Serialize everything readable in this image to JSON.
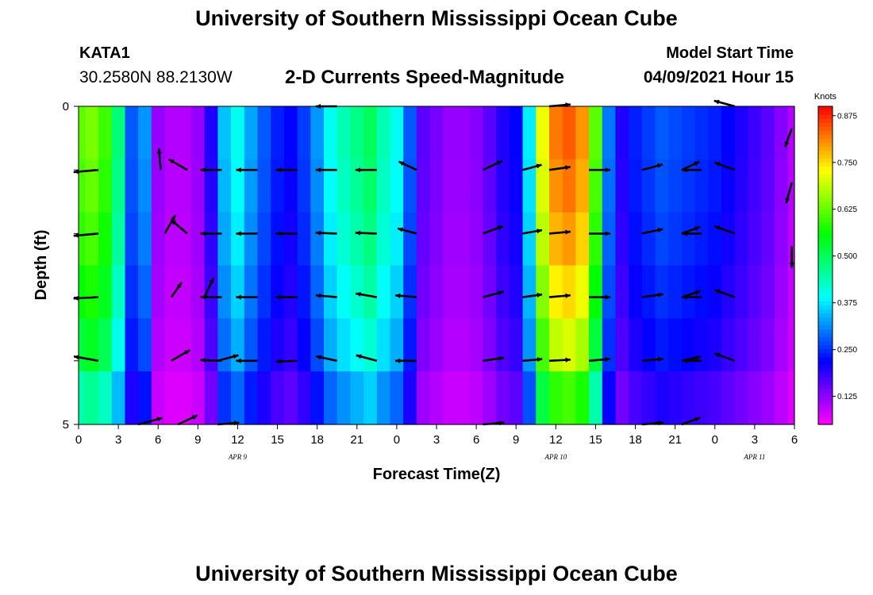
{
  "header": {
    "title": "University of Southern Mississippi Ocean Cube",
    "station_id": "KATA1",
    "station_coords": "30.2580N  88.2130W",
    "chart_title": "2-D Currents Speed-Magnitude",
    "model_start_label": "Model Start Time",
    "model_start_value": "04/09/2021 Hour 15"
  },
  "footer": {
    "title": "University of Southern Mississippi Ocean Cube"
  },
  "chart_data": {
    "type": "heatmap",
    "title": "2-D Currents Speed-Magnitude",
    "xlabel": "Forecast Time(Z)",
    "ylabel": "Depth (ft)",
    "x_unit": "forecast hour",
    "xlim": [
      0,
      54
    ],
    "ylim": [
      0,
      5
    ],
    "y_tick_labels": [
      {
        "depth": 0,
        "label": "0"
      },
      {
        "depth": 1,
        "label": ""
      },
      {
        "depth": 2,
        "label": ""
      },
      {
        "depth": 3,
        "label": ""
      },
      {
        "depth": 4,
        "label": ""
      },
      {
        "depth": 5,
        "label": "5"
      }
    ],
    "x_tick_labels": [
      {
        "hour": 0,
        "label": "0"
      },
      {
        "hour": 3,
        "label": "3"
      },
      {
        "hour": 6,
        "label": "6"
      },
      {
        "hour": 9,
        "label": "9"
      },
      {
        "hour": 12,
        "label": "12"
      },
      {
        "hour": 15,
        "label": "15"
      },
      {
        "hour": 18,
        "label": "18"
      },
      {
        "hour": 21,
        "label": "21"
      },
      {
        "hour": 24,
        "label": "0"
      },
      {
        "hour": 27,
        "label": "3"
      },
      {
        "hour": 30,
        "label": "6"
      },
      {
        "hour": 33,
        "label": "9"
      },
      {
        "hour": 36,
        "label": "12"
      },
      {
        "hour": 39,
        "label": "15"
      },
      {
        "hour": 42,
        "label": "18"
      },
      {
        "hour": 45,
        "label": "21"
      },
      {
        "hour": 48,
        "label": "0"
      },
      {
        "hour": 51,
        "label": "3"
      },
      {
        "hour": 54,
        "label": "6"
      }
    ],
    "date_labels": [
      {
        "hour": 12,
        "label": "APR  9"
      },
      {
        "hour": 36,
        "label": "APR  10"
      },
      {
        "hour": 51,
        "label": "APR  11"
      }
    ],
    "colorbar": {
      "unit": "Knots",
      "range": [
        0.05,
        0.9
      ],
      "ticks": [
        "0.125",
        "0.250",
        "0.375",
        "0.500",
        "0.625",
        "0.750",
        "0.875"
      ],
      "tick_values": [
        0.125,
        0.25,
        0.375,
        0.5,
        0.625,
        0.75,
        0.875
      ]
    },
    "speed_profile": {
      "hours": [
        0,
        1,
        2,
        3,
        4,
        5,
        6,
        7,
        8,
        9,
        10,
        11,
        12,
        13,
        14,
        15,
        16,
        17,
        18,
        19,
        20,
        21,
        22,
        23,
        24,
        25,
        26,
        27,
        28,
        29,
        30,
        31,
        32,
        33,
        34,
        35,
        36,
        37,
        38,
        39,
        40,
        41,
        42,
        43,
        44,
        45,
        46,
        47,
        48,
        49,
        50,
        51,
        52,
        53,
        54
      ],
      "speed_knots": [
        0.62,
        0.64,
        0.6,
        0.48,
        0.28,
        0.32,
        0.12,
        0.1,
        0.1,
        0.12,
        0.2,
        0.35,
        0.4,
        0.33,
        0.28,
        0.24,
        0.22,
        0.26,
        0.32,
        0.4,
        0.44,
        0.47,
        0.5,
        0.44,
        0.4,
        0.28,
        0.16,
        0.14,
        0.12,
        0.12,
        0.13,
        0.16,
        0.2,
        0.22,
        0.38,
        0.72,
        0.82,
        0.84,
        0.8,
        0.62,
        0.3,
        0.2,
        0.24,
        0.26,
        0.28,
        0.27,
        0.26,
        0.25,
        0.24,
        0.22,
        0.2,
        0.18,
        0.16,
        0.13,
        0.1
      ]
    },
    "depth_factor": [
      1.0,
      0.98,
      0.95,
      0.9,
      0.84,
      0.72
    ],
    "vectors": [
      {
        "hour": 1.5,
        "depth": 1,
        "dir_deg": 185,
        "len": 0.7
      },
      {
        "hour": 1.5,
        "depth": 2,
        "dir_deg": 185,
        "len": 0.7
      },
      {
        "hour": 1.5,
        "depth": 3,
        "dir_deg": 183,
        "len": 0.7
      },
      {
        "hour": 1.5,
        "depth": 4,
        "dir_deg": 170,
        "len": 0.7
      },
      {
        "hour": 4.5,
        "depth": 5,
        "dir_deg": 15,
        "len": 0.7
      },
      {
        "hour": 6.2,
        "depth": 1,
        "dir_deg": 95,
        "len": 0.6
      },
      {
        "hour": 6.5,
        "depth": 2,
        "dir_deg": 60,
        "len": 0.6
      },
      {
        "hour": 7.0,
        "depth": 3,
        "dir_deg": 55,
        "len": 0.5
      },
      {
        "hour": 7.0,
        "depth": 4,
        "dir_deg": 30,
        "len": 0.6
      },
      {
        "hour": 7.5,
        "depth": 5,
        "dir_deg": 25,
        "len": 0.6
      },
      {
        "hour": 8.2,
        "depth": 1,
        "dir_deg": 150,
        "len": 0.6
      },
      {
        "hour": 8.2,
        "depth": 2,
        "dir_deg": 140,
        "len": 0.6
      },
      {
        "hour": 9.5,
        "depth": 3,
        "dir_deg": 65,
        "len": 0.6
      },
      {
        "hour": 10.5,
        "depth": 4,
        "dir_deg": 15,
        "len": 0.6
      },
      {
        "hour": 10.5,
        "depth": 5,
        "dir_deg": 5,
        "len": 0.6
      },
      {
        "hour": 10.8,
        "depth": 1,
        "dir_deg": 180,
        "len": 0.6
      },
      {
        "hour": 10.8,
        "depth": 2,
        "dir_deg": 180,
        "len": 0.6
      },
      {
        "hour": 10.8,
        "depth": 3,
        "dir_deg": 180,
        "len": 0.6
      },
      {
        "hour": 10.8,
        "depth": 4,
        "dir_deg": 178,
        "len": 0.6
      },
      {
        "hour": 13.5,
        "depth": 1,
        "dir_deg": 180,
        "len": 0.6
      },
      {
        "hour": 13.5,
        "depth": 2,
        "dir_deg": 180,
        "len": 0.6
      },
      {
        "hour": 13.5,
        "depth": 3,
        "dir_deg": 180,
        "len": 0.6
      },
      {
        "hour": 13.5,
        "depth": 4,
        "dir_deg": 180,
        "len": 0.6
      },
      {
        "hour": 16.5,
        "depth": 1,
        "dir_deg": 180,
        "len": 0.6
      },
      {
        "hour": 16.5,
        "depth": 2,
        "dir_deg": 180,
        "len": 0.6
      },
      {
        "hour": 16.5,
        "depth": 3,
        "dir_deg": 180,
        "len": 0.6
      },
      {
        "hour": 16.5,
        "depth": 4,
        "dir_deg": 182,
        "len": 0.6
      },
      {
        "hour": 19.5,
        "depth": 0,
        "dir_deg": 180,
        "len": 0.6
      },
      {
        "hour": 19.5,
        "depth": 1,
        "dir_deg": 180,
        "len": 0.6
      },
      {
        "hour": 19.5,
        "depth": 2,
        "dir_deg": 178,
        "len": 0.6
      },
      {
        "hour": 19.5,
        "depth": 3,
        "dir_deg": 175,
        "len": 0.6
      },
      {
        "hour": 19.5,
        "depth": 4,
        "dir_deg": 168,
        "len": 0.6
      },
      {
        "hour": 22.5,
        "depth": 1,
        "dir_deg": 180,
        "len": 0.6
      },
      {
        "hour": 22.5,
        "depth": 2,
        "dir_deg": 178,
        "len": 0.6
      },
      {
        "hour": 22.5,
        "depth": 3,
        "dir_deg": 170,
        "len": 0.6
      },
      {
        "hour": 22.5,
        "depth": 4,
        "dir_deg": 165,
        "len": 0.6
      },
      {
        "hour": 25.5,
        "depth": 1,
        "dir_deg": 155,
        "len": 0.55
      },
      {
        "hour": 25.5,
        "depth": 2,
        "dir_deg": 165,
        "len": 0.55
      },
      {
        "hour": 25.5,
        "depth": 3,
        "dir_deg": 175,
        "len": 0.6
      },
      {
        "hour": 25.5,
        "depth": 4,
        "dir_deg": 180,
        "len": 0.6
      },
      {
        "hour": 30.5,
        "depth": 1,
        "dir_deg": 25,
        "len": 0.6
      },
      {
        "hour": 30.5,
        "depth": 2,
        "dir_deg": 20,
        "len": 0.6
      },
      {
        "hour": 30.5,
        "depth": 3,
        "dir_deg": 15,
        "len": 0.6
      },
      {
        "hour": 30.5,
        "depth": 4,
        "dir_deg": 8,
        "len": 0.6
      },
      {
        "hour": 30.5,
        "depth": 5,
        "dir_deg": 5,
        "len": 0.6
      },
      {
        "hour": 33.5,
        "depth": 1,
        "dir_deg": 15,
        "len": 0.55
      },
      {
        "hour": 33.5,
        "depth": 2,
        "dir_deg": 10,
        "len": 0.55
      },
      {
        "hour": 33.5,
        "depth": 3,
        "dir_deg": 8,
        "len": 0.55
      },
      {
        "hour": 33.5,
        "depth": 4,
        "dir_deg": 5,
        "len": 0.55
      },
      {
        "hour": 35.5,
        "depth": 0,
        "dir_deg": 5,
        "len": 0.6
      },
      {
        "hour": 35.5,
        "depth": 1,
        "dir_deg": 8,
        "len": 0.6
      },
      {
        "hour": 35.5,
        "depth": 2,
        "dir_deg": 5,
        "len": 0.6
      },
      {
        "hour": 35.5,
        "depth": 3,
        "dir_deg": 5,
        "len": 0.6
      },
      {
        "hour": 35.5,
        "depth": 4,
        "dir_deg": 3,
        "len": 0.6
      },
      {
        "hour": 38.5,
        "depth": 1,
        "dir_deg": 0,
        "len": 0.6
      },
      {
        "hour": 38.5,
        "depth": 2,
        "dir_deg": 0,
        "len": 0.6
      },
      {
        "hour": 38.5,
        "depth": 3,
        "dir_deg": 0,
        "len": 0.6
      },
      {
        "hour": 38.5,
        "depth": 4,
        "dir_deg": 5,
        "len": 0.6
      },
      {
        "hour": 42.5,
        "depth": 1,
        "dir_deg": 15,
        "len": 0.6
      },
      {
        "hour": 42.5,
        "depth": 2,
        "dir_deg": 12,
        "len": 0.6
      },
      {
        "hour": 42.5,
        "depth": 3,
        "dir_deg": 8,
        "len": 0.6
      },
      {
        "hour": 42.5,
        "depth": 4,
        "dir_deg": 5,
        "len": 0.6
      },
      {
        "hour": 42.5,
        "depth": 5,
        "dir_deg": 5,
        "len": 0.6
      },
      {
        "hour": 45.5,
        "depth": 1,
        "dir_deg": 25,
        "len": 0.55
      },
      {
        "hour": 45.5,
        "depth": 2,
        "dir_deg": 20,
        "len": 0.55
      },
      {
        "hour": 45.5,
        "depth": 3,
        "dir_deg": 18,
        "len": 0.55
      },
      {
        "hour": 45.5,
        "depth": 4,
        "dir_deg": 12,
        "len": 0.55
      },
      {
        "hour": 45.5,
        "depth": 5,
        "dir_deg": 20,
        "len": 0.55
      },
      {
        "hour": 47.0,
        "depth": 1,
        "dir_deg": 180,
        "len": 0.55
      },
      {
        "hour": 47.0,
        "depth": 2,
        "dir_deg": 180,
        "len": 0.55
      },
      {
        "hour": 47.0,
        "depth": 3,
        "dir_deg": 180,
        "len": 0.55
      },
      {
        "hour": 47.0,
        "depth": 4,
        "dir_deg": 180,
        "len": 0.55
      },
      {
        "hour": 49.5,
        "depth": 0,
        "dir_deg": 165,
        "len": 0.6
      },
      {
        "hour": 49.5,
        "depth": 1,
        "dir_deg": 160,
        "len": 0.6
      },
      {
        "hour": 49.5,
        "depth": 2,
        "dir_deg": 160,
        "len": 0.6
      },
      {
        "hour": 49.5,
        "depth": 3,
        "dir_deg": 160,
        "len": 0.6
      },
      {
        "hour": 49.5,
        "depth": 4,
        "dir_deg": 160,
        "len": 0.6
      },
      {
        "hour": 53.8,
        "depth": 0.35,
        "dir_deg": 250,
        "len": 0.55
      },
      {
        "hour": 53.8,
        "depth": 1.2,
        "dir_deg": 255,
        "len": 0.6
      },
      {
        "hour": 53.8,
        "depth": 2.2,
        "dir_deg": 270,
        "len": 0.6
      }
    ]
  }
}
